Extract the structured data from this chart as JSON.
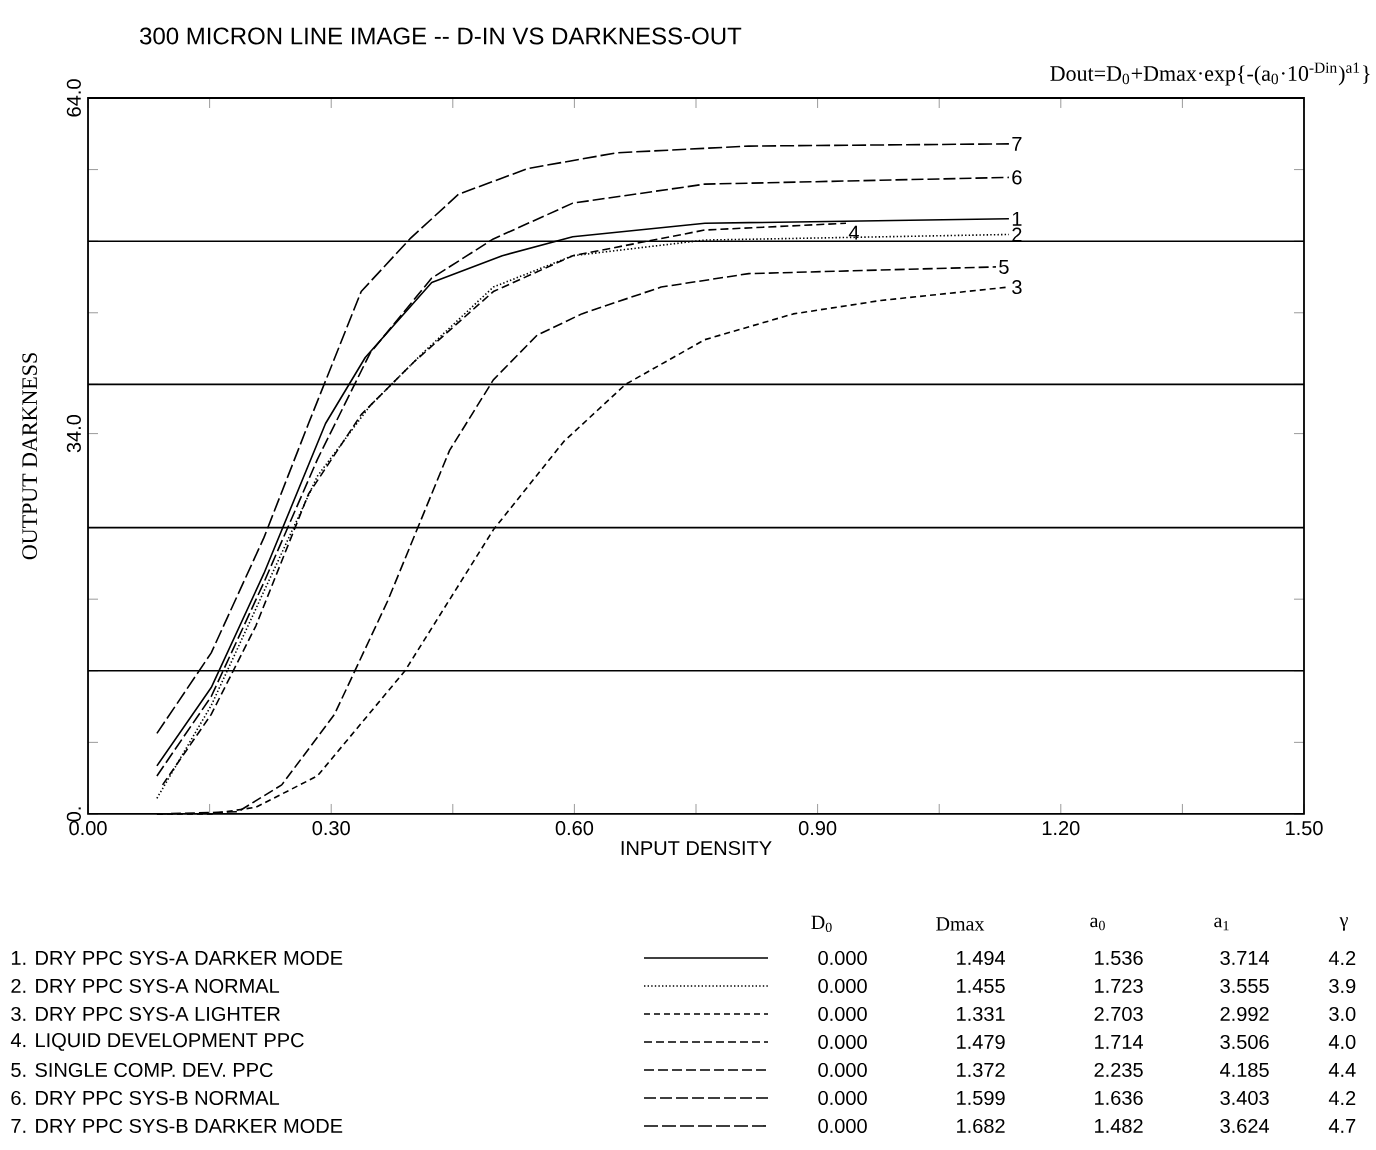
{
  "chart_data": {
    "type": "line",
    "title": "300 MICRON LINE IMAGE -- D-IN VS DARKNESS-OUT",
    "xlabel": "INPUT DENSITY",
    "ylabel": "OUTPUT DARKNESS",
    "xlim": [
      0,
      1.5
    ],
    "ylim": [
      0,
      64
    ],
    "xticks": [
      {
        "value": 0,
        "label": "0.00"
      },
      {
        "value": 0.15,
        "label": null
      },
      {
        "value": 0.3,
        "label": "0.30"
      },
      {
        "value": 0.45,
        "label": null
      },
      {
        "value": 0.6,
        "label": "0.60"
      },
      {
        "value": 0.75,
        "label": null
      },
      {
        "value": 0.9,
        "label": "0.90"
      },
      {
        "value": 1.05,
        "label": null
      },
      {
        "value": 1.2,
        "label": "1.20"
      },
      {
        "value": 1.35,
        "label": null
      },
      {
        "value": 1.5,
        "label": "1.50"
      }
    ],
    "yticks": [
      {
        "value": 0,
        "label": "0."
      },
      {
        "value": 6.4,
        "label": null
      },
      {
        "value": 12.8,
        "label": null
      },
      {
        "value": 19.2,
        "label": null
      },
      {
        "value": 25.6,
        "label": null
      },
      {
        "value": 34,
        "label": "34.0"
      },
      {
        "value": 38.4,
        "label": null
      },
      {
        "value": 44.8,
        "label": null
      },
      {
        "value": 51.2,
        "label": null
      },
      {
        "value": 57.6,
        "label": null
      },
      {
        "value": 64,
        "label": "64.0"
      }
    ],
    "ref_lines": [
      {
        "axis": "y",
        "value": 12.8
      },
      {
        "axis": "y",
        "value": 25.6
      },
      {
        "axis": "y",
        "value": 38.4
      },
      {
        "axis": "y",
        "value": 51.2
      }
    ],
    "series": [
      {
        "name": "1",
        "color": "#000000",
        "line_style": "solid",
        "x": [
          0.085,
          0.152,
          0.217,
          0.293,
          0.342,
          0.424,
          0.511,
          0.598,
          0.761,
          1.136
        ],
        "values": [
          4.3,
          11.3,
          21.5,
          34.9,
          40.8,
          47.5,
          49.9,
          51.6,
          52.8,
          53.2
        ]
      },
      {
        "name": "2",
        "color": "#000000",
        "line_style": "dotted",
        "x": [
          0.085,
          0.152,
          0.217,
          0.283,
          0.348,
          0.413,
          0.5,
          0.598,
          0.761,
          1.136
        ],
        "values": [
          1.4,
          9.7,
          19.9,
          30.2,
          36.5,
          41.2,
          47.1,
          49.9,
          51.3,
          51.8
        ]
      },
      {
        "name": "3",
        "color": "#000000",
        "line_style": "dashed",
        "x": [
          0.085,
          0.152,
          0.207,
          0.283,
          0.391,
          0.5,
          0.587,
          0.663,
          0.761,
          0.87,
          0.978,
          1.136
        ],
        "values": [
          0,
          0,
          0.6,
          3.4,
          12.8,
          25.4,
          33.3,
          38.4,
          42.4,
          44.7,
          45.9,
          47.1
        ]
      },
      {
        "name": "4",
        "color": "#000000",
        "line_style": "dashed",
        "x": [
          0.092,
          0.152,
          0.207,
          0.272,
          0.337,
          0.402,
          0.5,
          0.598,
          0.761,
          0.935
        ],
        "values": [
          2.6,
          8.9,
          16.8,
          28.6,
          35.7,
          40.4,
          46.7,
          49.9,
          52.2,
          52.8
        ]
      },
      {
        "name": "5",
        "color": "#000000",
        "line_style": "dashed",
        "x": [
          0.085,
          0.185,
          0.239,
          0.304,
          0.37,
          0.446,
          0.5,
          0.554,
          0.609,
          0.707,
          0.815,
          1.12
        ],
        "values": [
          0,
          0.2,
          2.6,
          8.9,
          19.1,
          32.5,
          38.8,
          42.8,
          44.7,
          47.1,
          48.3,
          48.9
        ]
      },
      {
        "name": "6",
        "color": "#000000",
        "line_style": "dashed",
        "x": [
          0.085,
          0.152,
          0.217,
          0.283,
          0.348,
          0.424,
          0.5,
          0.598,
          0.761,
          1.136
        ],
        "values": [
          3.4,
          10.5,
          20.7,
          31.7,
          41.2,
          47.9,
          51.4,
          54.6,
          56.3,
          56.9
        ]
      },
      {
        "name": "7",
        "color": "#000000",
        "line_style": "dashed",
        "x": [
          0.085,
          0.152,
          0.217,
          0.272,
          0.337,
          0.397,
          0.457,
          0.543,
          0.652,
          0.815,
          1.136
        ],
        "values": [
          7.2,
          14.4,
          24.7,
          34.9,
          46.7,
          51.4,
          55.4,
          57.7,
          59.1,
          59.7,
          59.9
        ]
      }
    ],
    "annotations": [
      "Dout=D$_{0}$+Dmax·exp{-(a$_{0}$·10$^{-Din}$)$^{a1}$}",
      "D$_{0}$",
      "Dmax",
      "a$_{0}$",
      "a$_{1}$",
      "γ",
      "1. DRY PPC SYS-A DARKER MODE",
      "0.000",
      "1.494",
      "1.536",
      "3.714",
      "4.2",
      "2. DRY PPC SYS-A NORMAL",
      "0.000",
      "1.455",
      "1.723",
      "3.555",
      "3.9",
      "3. DRY PPC SYS-A LIGHTER",
      "0.000",
      "1.331",
      "2.703",
      "2.992",
      "3.0",
      "4. LIQUID DEVELOPMENT PPC",
      "0.000",
      "1.479",
      "1.714",
      "3.506",
      "4.0",
      "5. SINGLE COMP. DEV. PPC",
      "0.000",
      "1.372",
      "2.235",
      "4.185",
      "4.4",
      "6. DRY PPC SYS-B NORMAL",
      "0.000",
      "1.599",
      "1.636",
      "3.403",
      "4.2",
      "7. DRY PPC SYS-B DARKER MODE",
      "0.000",
      "1.682",
      "1.482",
      "3.624",
      "4.7"
    ]
  }
}
